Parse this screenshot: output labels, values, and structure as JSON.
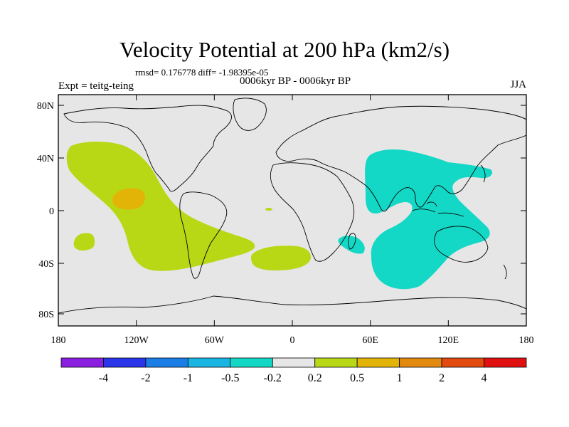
{
  "title": "Velocity Potential at 200 hPa (km2/s)",
  "stats_line": "rmsd= 0.176778 diff= -1.98395e-05",
  "period": "0006kyr BP - 0006kyr BP",
  "expt": "Expt = teitg-teing",
  "season": "JJA",
  "map": {
    "background": "#e6e6e6",
    "lat_ticks": [
      "80N",
      "40N",
      "0",
      "40S",
      "80S"
    ],
    "lon_ticks": [
      "180",
      "120W",
      "60W",
      "0",
      "60E",
      "120E",
      "180"
    ]
  },
  "colorbar": {
    "colors": [
      "#8a1fe0",
      "#2a34e8",
      "#1a7ee6",
      "#18b4e2",
      "#14d8c6",
      "#e6e6e6",
      "#b8d816",
      "#e2b408",
      "#e28a10",
      "#e24a10",
      "#e01010"
    ],
    "labels": [
      "-4",
      "-2",
      "-1",
      "-0.5",
      "-0.2",
      "0.2",
      "0.5",
      "1",
      "2",
      "4"
    ]
  },
  "anomaly_colors": {
    "positive_weak": "#b8d816",
    "positive_moderate": "#e2b408",
    "negative_weak": "#14d8c6"
  }
}
